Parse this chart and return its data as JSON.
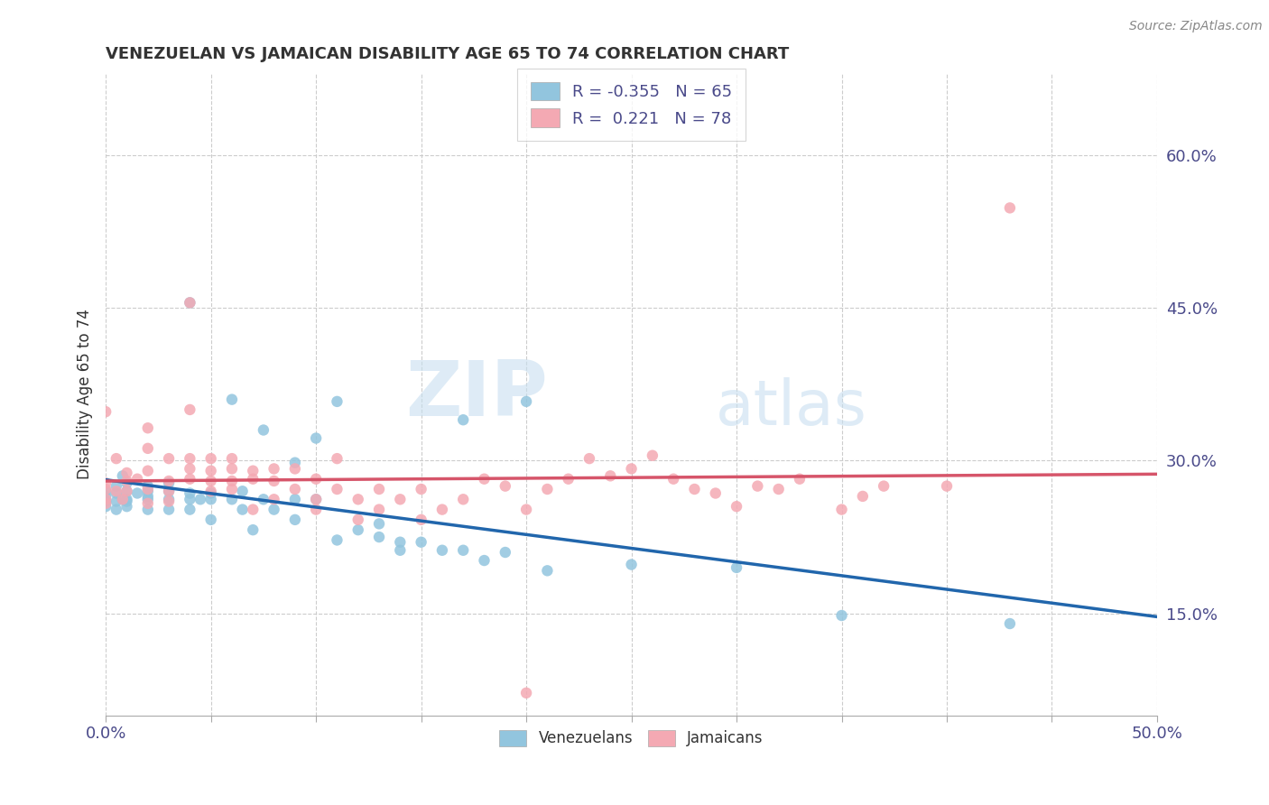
{
  "title": "VENEZUELAN VS JAMAICAN DISABILITY AGE 65 TO 74 CORRELATION CHART",
  "source_text": "Source: ZipAtlas.com",
  "ylabel": "Disability Age 65 to 74",
  "xlim": [
    0.0,
    0.5
  ],
  "ylim": [
    0.05,
    0.68
  ],
  "xticks": [
    0.0,
    0.05,
    0.1,
    0.15,
    0.2,
    0.25,
    0.3,
    0.35,
    0.4,
    0.45,
    0.5
  ],
  "ytick_labels": [
    "15.0%",
    "30.0%",
    "45.0%",
    "60.0%"
  ],
  "yticks": [
    0.15,
    0.3,
    0.45,
    0.6
  ],
  "legend_labels": [
    "Venezuelans",
    "Jamaicans"
  ],
  "venezuelan_color": "#92c5de",
  "jamaican_color": "#f4a9b3",
  "venezuelan_line_color": "#2166ac",
  "jamaican_line_color": "#d6556a",
  "R_venezuelan": -0.355,
  "N_venezuelan": 65,
  "R_jamaican": 0.221,
  "N_jamaican": 78,
  "watermark_zip": "ZIP",
  "watermark_atlas": "atlas",
  "background_color": "#ffffff",
  "grid_color": "#cccccc",
  "venezuelan_scatter": [
    [
      0.0,
      0.265
    ],
    [
      0.0,
      0.27
    ],
    [
      0.0,
      0.255
    ],
    [
      0.0,
      0.26
    ],
    [
      0.005,
      0.275
    ],
    [
      0.005,
      0.268
    ],
    [
      0.005,
      0.26
    ],
    [
      0.005,
      0.252
    ],
    [
      0.008,
      0.285
    ],
    [
      0.008,
      0.262
    ],
    [
      0.01,
      0.27
    ],
    [
      0.01,
      0.262
    ],
    [
      0.01,
      0.255
    ],
    [
      0.01,
      0.278
    ],
    [
      0.01,
      0.26
    ],
    [
      0.015,
      0.268
    ],
    [
      0.02,
      0.265
    ],
    [
      0.02,
      0.252
    ],
    [
      0.02,
      0.27
    ],
    [
      0.02,
      0.262
    ],
    [
      0.02,
      0.275
    ],
    [
      0.03,
      0.262
    ],
    [
      0.03,
      0.252
    ],
    [
      0.03,
      0.27
    ],
    [
      0.03,
      0.278
    ],
    [
      0.04,
      0.455
    ],
    [
      0.04,
      0.262
    ],
    [
      0.04,
      0.252
    ],
    [
      0.04,
      0.268
    ],
    [
      0.045,
      0.262
    ],
    [
      0.05,
      0.268
    ],
    [
      0.05,
      0.262
    ],
    [
      0.05,
      0.242
    ],
    [
      0.06,
      0.36
    ],
    [
      0.06,
      0.262
    ],
    [
      0.065,
      0.252
    ],
    [
      0.065,
      0.27
    ],
    [
      0.07,
      0.232
    ],
    [
      0.075,
      0.33
    ],
    [
      0.075,
      0.262
    ],
    [
      0.08,
      0.252
    ],
    [
      0.09,
      0.298
    ],
    [
      0.09,
      0.262
    ],
    [
      0.09,
      0.242
    ],
    [
      0.1,
      0.262
    ],
    [
      0.1,
      0.322
    ],
    [
      0.11,
      0.222
    ],
    [
      0.11,
      0.358
    ],
    [
      0.12,
      0.232
    ],
    [
      0.13,
      0.225
    ],
    [
      0.13,
      0.238
    ],
    [
      0.14,
      0.212
    ],
    [
      0.14,
      0.22
    ],
    [
      0.15,
      0.22
    ],
    [
      0.16,
      0.212
    ],
    [
      0.17,
      0.34
    ],
    [
      0.17,
      0.212
    ],
    [
      0.18,
      0.202
    ],
    [
      0.19,
      0.21
    ],
    [
      0.2,
      0.358
    ],
    [
      0.21,
      0.192
    ],
    [
      0.25,
      0.198
    ],
    [
      0.3,
      0.195
    ],
    [
      0.35,
      0.148
    ],
    [
      0.43,
      0.14
    ]
  ],
  "jamaican_scatter": [
    [
      0.0,
      0.258
    ],
    [
      0.0,
      0.272
    ],
    [
      0.0,
      0.278
    ],
    [
      0.0,
      0.262
    ],
    [
      0.0,
      0.348
    ],
    [
      0.005,
      0.27
    ],
    [
      0.005,
      0.302
    ],
    [
      0.008,
      0.262
    ],
    [
      0.01,
      0.28
    ],
    [
      0.01,
      0.288
    ],
    [
      0.01,
      0.27
    ],
    [
      0.015,
      0.282
    ],
    [
      0.02,
      0.272
    ],
    [
      0.02,
      0.312
    ],
    [
      0.02,
      0.258
    ],
    [
      0.02,
      0.332
    ],
    [
      0.02,
      0.29
    ],
    [
      0.03,
      0.26
    ],
    [
      0.03,
      0.302
    ],
    [
      0.03,
      0.28
    ],
    [
      0.03,
      0.27
    ],
    [
      0.04,
      0.292
    ],
    [
      0.04,
      0.302
    ],
    [
      0.04,
      0.455
    ],
    [
      0.04,
      0.282
    ],
    [
      0.04,
      0.35
    ],
    [
      0.05,
      0.27
    ],
    [
      0.05,
      0.302
    ],
    [
      0.05,
      0.28
    ],
    [
      0.05,
      0.29
    ],
    [
      0.06,
      0.28
    ],
    [
      0.06,
      0.292
    ],
    [
      0.06,
      0.272
    ],
    [
      0.06,
      0.302
    ],
    [
      0.07,
      0.282
    ],
    [
      0.07,
      0.29
    ],
    [
      0.07,
      0.252
    ],
    [
      0.08,
      0.28
    ],
    [
      0.08,
      0.262
    ],
    [
      0.08,
      0.292
    ],
    [
      0.09,
      0.272
    ],
    [
      0.09,
      0.292
    ],
    [
      0.1,
      0.252
    ],
    [
      0.1,
      0.282
    ],
    [
      0.1,
      0.262
    ],
    [
      0.11,
      0.272
    ],
    [
      0.11,
      0.302
    ],
    [
      0.12,
      0.262
    ],
    [
      0.12,
      0.242
    ],
    [
      0.13,
      0.252
    ],
    [
      0.13,
      0.272
    ],
    [
      0.14,
      0.262
    ],
    [
      0.15,
      0.272
    ],
    [
      0.15,
      0.242
    ],
    [
      0.16,
      0.252
    ],
    [
      0.17,
      0.262
    ],
    [
      0.18,
      0.282
    ],
    [
      0.19,
      0.275
    ],
    [
      0.2,
      0.252
    ],
    [
      0.21,
      0.272
    ],
    [
      0.22,
      0.282
    ],
    [
      0.23,
      0.302
    ],
    [
      0.24,
      0.285
    ],
    [
      0.25,
      0.292
    ],
    [
      0.26,
      0.305
    ],
    [
      0.27,
      0.282
    ],
    [
      0.28,
      0.272
    ],
    [
      0.29,
      0.268
    ],
    [
      0.3,
      0.255
    ],
    [
      0.31,
      0.275
    ],
    [
      0.32,
      0.272
    ],
    [
      0.33,
      0.282
    ],
    [
      0.35,
      0.252
    ],
    [
      0.36,
      0.265
    ],
    [
      0.37,
      0.275
    ],
    [
      0.4,
      0.275
    ],
    [
      0.43,
      0.548
    ],
    [
      0.2,
      0.072
    ]
  ]
}
